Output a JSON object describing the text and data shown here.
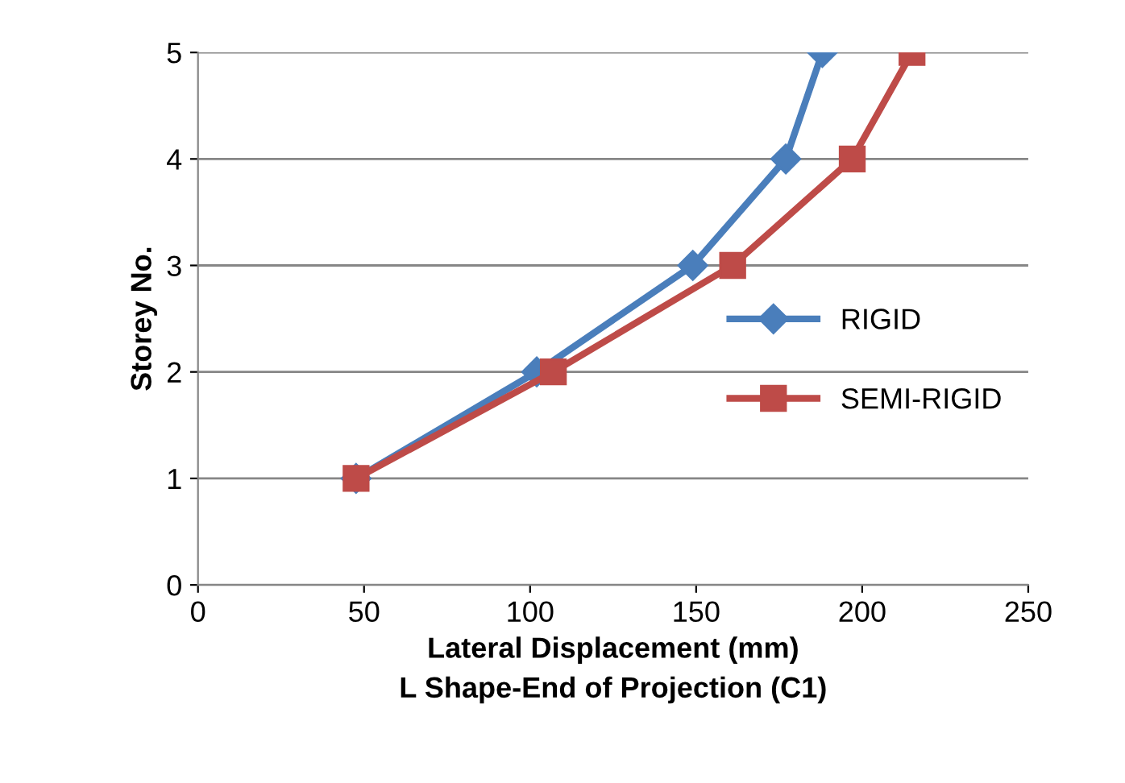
{
  "chart_data": {
    "type": "line",
    "xlabel": "Lateral Displacement (mm)\nL Shape-End of Projection (C1)",
    "ylabel": "Storey No.",
    "xlim": [
      0,
      250
    ],
    "xticks": [
      0,
      50,
      100,
      150,
      200,
      250
    ],
    "ylim": [
      0,
      5
    ],
    "yticks": [
      0,
      1,
      2,
      3,
      4,
      5
    ],
    "grid": "y",
    "legend": "right",
    "series": [
      {
        "name": "RIGID",
        "color": "#4a7ebb",
        "marker": "diamond",
        "x": [
          47.6,
          102,
          149,
          177,
          188
        ],
        "values": [
          1,
          2,
          3,
          4,
          5
        ]
      },
      {
        "name": "SEMI-RIGID",
        "color": "#be4b48",
        "marker": "square",
        "x": [
          47.6,
          107,
          161,
          197,
          215
        ],
        "values": [
          1,
          2,
          3,
          4,
          5
        ]
      }
    ]
  }
}
